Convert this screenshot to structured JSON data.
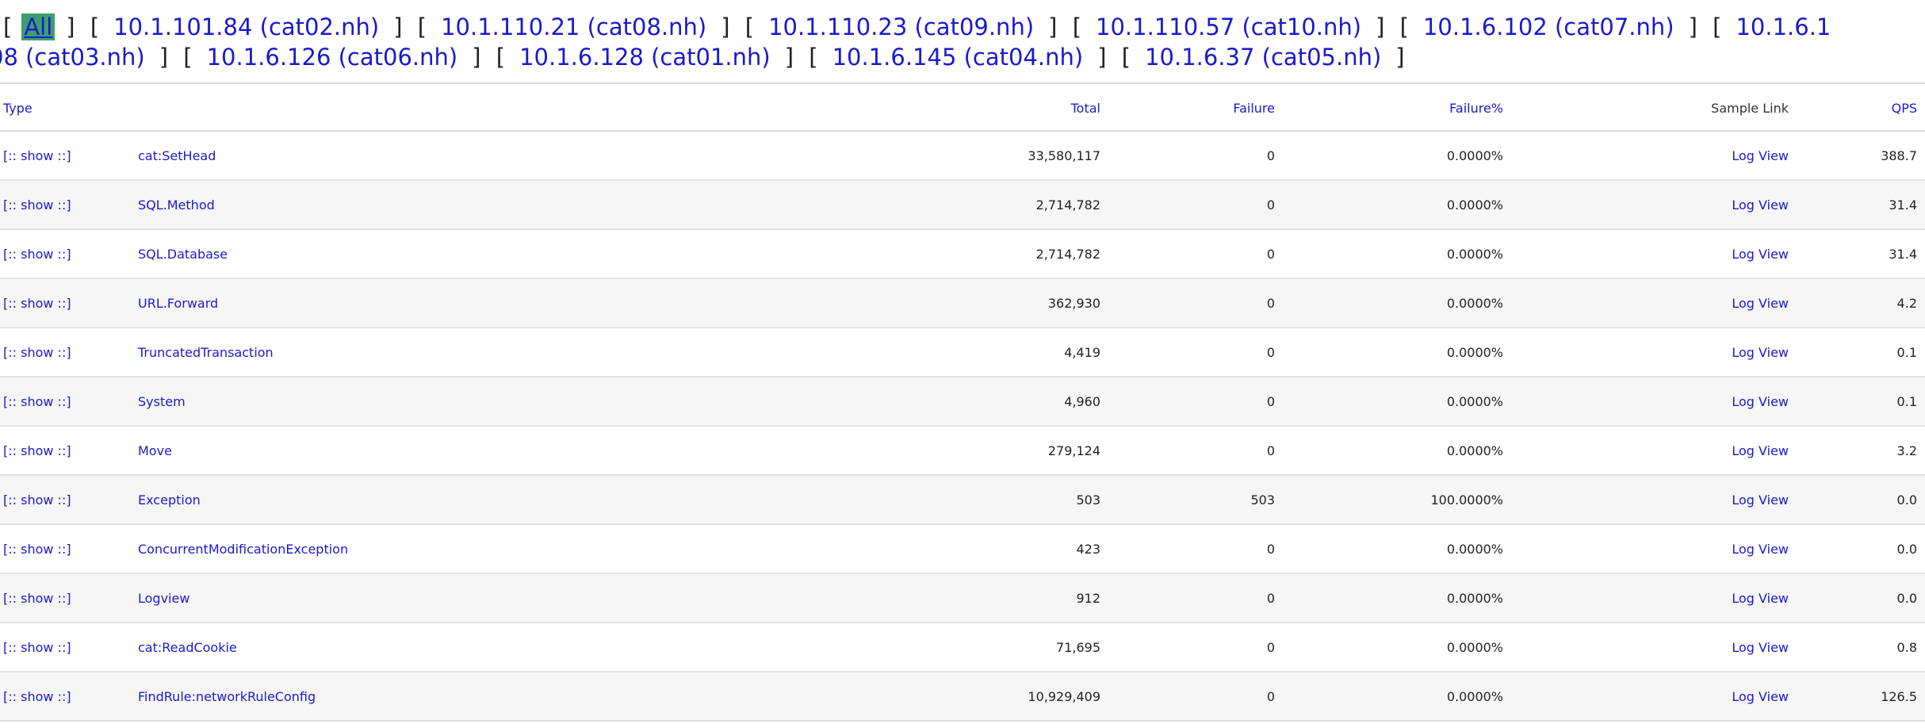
{
  "machines": {
    "current": "All",
    "line1": [
      "10.1.101.84 (cat02.nh)",
      "10.1.110.21 (cat08.nh)",
      "10.1.110.23 (cat09.nh)",
      "10.1.110.57 (cat10.nh)",
      "10.1.6.102 (cat07.nh)",
      "10.1.6.1"
    ],
    "line2": [
      "08 (cat03.nh)",
      "10.1.6.126 (cat06.nh)",
      "10.1.6.128 (cat01.nh)",
      "10.1.6.145 (cat04.nh)",
      "10.1.6.37 (cat05.nh)"
    ]
  },
  "table": {
    "headers": {
      "type": "Type",
      "total": "Total",
      "failure": "Failure",
      "failure_pct": "Failure%",
      "sample_link": "Sample Link",
      "qps": "QPS"
    },
    "show_label": "[:: show ::]",
    "log_label": "Log View",
    "rows": [
      {
        "type": "cat:SetHead",
        "total": "33,580,117",
        "failure": "0",
        "failure_pct": "0.0000%",
        "qps": "388.7"
      },
      {
        "type": "SQL.Method",
        "total": "2,714,782",
        "failure": "0",
        "failure_pct": "0.0000%",
        "qps": "31.4"
      },
      {
        "type": "SQL.Database",
        "total": "2,714,782",
        "failure": "0",
        "failure_pct": "0.0000%",
        "qps": "31.4"
      },
      {
        "type": "URL.Forward",
        "total": "362,930",
        "failure": "0",
        "failure_pct": "0.0000%",
        "qps": "4.2"
      },
      {
        "type": "TruncatedTransaction",
        "total": "4,419",
        "failure": "0",
        "failure_pct": "0.0000%",
        "qps": "0.1"
      },
      {
        "type": "System",
        "total": "4,960",
        "failure": "0",
        "failure_pct": "0.0000%",
        "qps": "0.1"
      },
      {
        "type": "Move",
        "total": "279,124",
        "failure": "0",
        "failure_pct": "0.0000%",
        "qps": "3.2"
      },
      {
        "type": "Exception",
        "total": "503",
        "failure": "503",
        "failure_pct": "100.0000%",
        "qps": "0.0"
      },
      {
        "type": "ConcurrentModificationException",
        "total": "423",
        "failure": "0",
        "failure_pct": "0.0000%",
        "qps": "0.0"
      },
      {
        "type": "Logview",
        "total": "912",
        "failure": "0",
        "failure_pct": "0.0000%",
        "qps": "0.0"
      },
      {
        "type": "cat:ReadCookie",
        "total": "71,695",
        "failure": "0",
        "failure_pct": "0.0000%",
        "qps": "0.8"
      },
      {
        "type": "FindRule:networkRuleConfig",
        "total": "10,929,409",
        "failure": "0",
        "failure_pct": "0.0000%",
        "qps": "126.5"
      }
    ]
  }
}
